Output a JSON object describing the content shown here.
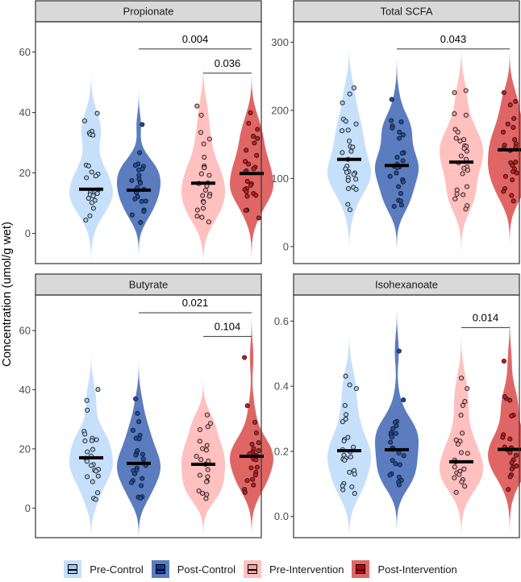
{
  "chart_data": {
    "type": "violin",
    "ylabel": "Concentration (umol/g wet)",
    "legend_position": "bottom",
    "groups": [
      "Pre-Control",
      "Post-Control",
      "Pre-Intervention",
      "Post-Intervention"
    ],
    "colors": {
      "violin": [
        "#c6e0fb",
        "#5b7cbf",
        "#ffc0c0",
        "#e06666"
      ],
      "point": [
        "#a8cdf3",
        "#1e4fa8",
        "#f7a3a3",
        "#d11a1a"
      ],
      "legend": [
        "#9ec9f2",
        "#0f3c9a",
        "#f6a0a0",
        "#c80000"
      ],
      "strip": "#d9d9d9"
    },
    "panels": [
      {
        "title": "Propionate",
        "ylim": [
          -10,
          70
        ],
        "yticks": [
          0,
          20,
          40,
          60
        ],
        "ytick_labels": [
          "0",
          "20",
          "40",
          "60"
        ],
        "medians": [
          14.6,
          14.3,
          16.6,
          19.8
        ],
        "points": [
          [
            39.7,
            37.2,
            33.8,
            33.2,
            32.7,
            32.5,
            22.6,
            22.3,
            20.3,
            19.6,
            19.0,
            18.4,
            14.4,
            13.9,
            13.5,
            13.2,
            12.8,
            12.4,
            11.6,
            10.9,
            10.2,
            8.3,
            5.8,
            4.4
          ],
          [
            36.0,
            26.7,
            23.0,
            22.5,
            22.2,
            21.3,
            21.0,
            19.2,
            18.0,
            17.5,
            16.9,
            16.6,
            15.1,
            14.6,
            13.5,
            12.1,
            11.4,
            10.7,
            10.6,
            7.7,
            7.3,
            6.1,
            3.6
          ],
          [
            42.1,
            39.1,
            33.4,
            31.2,
            29.6,
            25.2,
            22.3,
            21.8,
            21.7,
            19.7,
            19.2,
            16.7,
            16.5,
            15.7,
            14.3,
            13.0,
            12.5,
            12.3,
            10.6,
            10.3,
            8.3,
            7.7,
            5.7,
            5.3,
            3.8
          ],
          [
            39.9,
            36.4,
            34.4,
            32.1,
            31.4,
            29.9,
            27.5,
            25.8,
            23.8,
            22.9,
            21.9,
            21.4,
            20.7,
            20.2,
            17.2,
            16.4,
            15.9,
            14.8,
            14.5,
            13.8,
            13.2,
            12.6,
            12.3,
            7.7,
            7.6,
            5.1
          ]
        ],
        "brackets": [
          {
            "from": "Post-Control",
            "to": "Post-Intervention",
            "label": "0.004",
            "y": 61
          },
          {
            "from": "Pre-Intervention",
            "to": "Post-Intervention",
            "label": "0.036",
            "y": 53
          }
        ]
      },
      {
        "title": "Total SCFA",
        "ylim": [
          -25,
          330
        ],
        "yticks": [
          0,
          100,
          200,
          300
        ],
        "ytick_labels": [
          "0",
          "100",
          "200",
          "300"
        ],
        "medians": [
          128,
          119,
          124,
          142
        ],
        "points": [
          [
            233,
            224,
            211,
            187,
            184,
            180,
            171,
            170,
            155,
            147,
            146,
            140,
            138,
            128,
            118,
            114,
            110,
            109,
            108,
            106,
            101,
            99,
            97,
            87,
            85,
            84,
            62,
            54
          ],
          [
            216,
            185,
            183,
            177,
            174,
            168,
            164,
            159,
            138,
            137,
            131,
            126,
            121,
            118,
            117,
            116,
            108,
            103,
            98,
            95,
            88,
            78,
            68,
            67,
            61,
            59
          ],
          [
            229,
            226,
            195,
            193,
            172,
            168,
            159,
            157,
            155,
            148,
            147,
            144,
            140,
            133,
            128,
            123,
            117,
            115,
            112,
            107,
            88,
            83,
            77,
            76,
            70,
            60,
            55
          ],
          [
            226,
            213,
            208,
            188,
            180,
            175,
            168,
            157,
            151,
            149,
            146,
            144,
            141,
            124,
            123,
            119,
            114,
            110,
            108,
            103,
            98,
            85,
            81,
            75,
            67
          ]
        ],
        "brackets": [
          {
            "from": "Post-Control",
            "to": "Post-Intervention",
            "label": "0.043",
            "y": 290
          }
        ]
      },
      {
        "title": "Butyrate",
        "ylim": [
          -10,
          72
        ],
        "yticks": [
          0,
          20,
          40,
          60
        ],
        "ytick_labels": [
          "0",
          "20",
          "40",
          "60"
        ],
        "medians": [
          17.0,
          15.1,
          14.8,
          17.5
        ],
        "points": [
          [
            40.1,
            36.4,
            33.1,
            25.9,
            25.0,
            23.6,
            23.1,
            22.8,
            22.7,
            19.8,
            19.0,
            17.6,
            16.8,
            15.8,
            14.7,
            14.4,
            13.1,
            12.8,
            12.5,
            10.8,
            10.6,
            8.9,
            5.2,
            3.3,
            2.9
          ],
          [
            36.9,
            32.0,
            29.2,
            26.3,
            24.6,
            23.6,
            23.4,
            19.4,
            18.4,
            18.2,
            17.9,
            16.6,
            15.3,
            14.4,
            13.5,
            12.8,
            12.6,
            11.6,
            10.0,
            9.3,
            8.6,
            7.6,
            3.8,
            3.7,
            3.4
          ],
          [
            31.5,
            28.6,
            27.5,
            26.5,
            22.6,
            21.2,
            20.1,
            19.6,
            17.5,
            16.4,
            15.9,
            14.8,
            13.0,
            11.1,
            10.6,
            9.1,
            8.9,
            5.8,
            5.0,
            4.6,
            3.2
          ],
          [
            50.9,
            34.6,
            29.0,
            25.4,
            22.1,
            21.6,
            20.1,
            19.4,
            19.0,
            18.6,
            18.3,
            17.8,
            16.6,
            16.3,
            13.8,
            13.6,
            12.1,
            11.2,
            9.7,
            9.3,
            7.8,
            6.3,
            5.3
          ]
        ],
        "brackets": [
          {
            "from": "Post-Control",
            "to": "Post-Intervention",
            "label": "0.021",
            "y": 66
          },
          {
            "from": "Pre-Intervention",
            "to": "Post-Intervention",
            "label": "0.104",
            "y": 58
          }
        ]
      },
      {
        "title": "Isohexanoate",
        "ylim": [
          -0.065,
          0.68
        ],
        "yticks": [
          0,
          0.2,
          0.4,
          0.6
        ],
        "ytick_labels": [
          "0.0",
          "0.2",
          "0.4",
          "0.6"
        ],
        "medians": [
          0.202,
          0.205,
          0.168,
          0.206
        ],
        "points": [
          [
            0.431,
            0.404,
            0.393,
            0.341,
            0.313,
            0.299,
            0.291,
            0.243,
            0.237,
            0.232,
            0.213,
            0.205,
            0.199,
            0.188,
            0.183,
            0.179,
            0.176,
            0.173,
            0.141,
            0.136,
            0.13,
            0.101,
            0.094,
            0.091,
            0.082,
            0.071
          ],
          [
            0.508,
            0.358,
            0.292,
            0.289,
            0.278,
            0.27,
            0.257,
            0.255,
            0.251,
            0.244,
            0.228,
            0.211,
            0.206,
            0.195,
            0.187,
            0.172,
            0.162,
            0.159,
            0.131,
            0.127,
            0.121,
            0.111,
            0.106,
            0.097
          ],
          [
            0.425,
            0.393,
            0.353,
            0.341,
            0.311,
            0.256,
            0.235,
            0.231,
            0.222,
            0.196,
            0.194,
            0.173,
            0.168,
            0.152,
            0.146,
            0.139,
            0.134,
            0.129,
            0.119,
            0.113,
            0.106,
            0.093,
            0.074
          ],
          [
            0.477,
            0.362,
            0.368,
            0.357,
            0.311,
            0.309,
            0.251,
            0.243,
            0.238,
            0.213,
            0.211,
            0.21,
            0.206,
            0.196,
            0.188,
            0.174,
            0.165,
            0.155,
            0.151,
            0.146,
            0.128,
            0.122,
            0.083
          ]
        ],
        "brackets": [
          {
            "from": "Pre-Intervention",
            "to": "Post-Intervention",
            "label": "0.014",
            "y": 0.58
          }
        ]
      }
    ]
  },
  "legend": {
    "items": [
      "Pre-Control",
      "Post-Control",
      "Pre-Intervention",
      "Post-Intervention"
    ]
  }
}
